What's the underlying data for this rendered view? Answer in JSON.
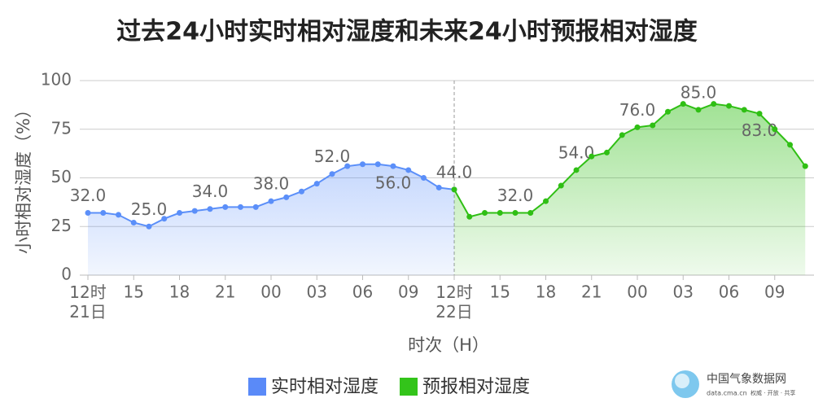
{
  "chart_data": {
    "type": "area-line",
    "title": "过去24小时实时相对湿度和未来24小时预报相对湿度",
    "y_label": "小时相对湿度（%）",
    "x_label": "时次（H）",
    "categories": [
      "12时\n21日",
      null,
      null,
      "15",
      null,
      null,
      "18",
      null,
      null,
      "21",
      null,
      null,
      "00",
      null,
      null,
      "03",
      null,
      null,
      "06",
      null,
      null,
      "09",
      null,
      null,
      "12时\n22日",
      null,
      null,
      "15",
      null,
      null,
      "18",
      null,
      null,
      "21",
      null,
      null,
      "00",
      null,
      null,
      "03",
      null,
      null,
      "06",
      null,
      null,
      "09",
      null,
      null
    ],
    "ylim": [
      0,
      100
    ],
    "yticks": [
      0,
      25,
      50,
      75,
      100
    ],
    "grid": true,
    "series": [
      {
        "name": "实时相对湿度",
        "color": "#5b8ff9",
        "legend_color": "#5a8af8",
        "values": [
          32,
          32,
          31,
          27,
          25,
          29,
          32,
          33,
          34,
          35,
          35,
          35,
          38,
          40,
          43,
          47,
          52,
          56,
          57,
          57,
          56,
          54,
          50,
          45,
          44,
          null,
          null,
          null,
          null,
          null,
          null,
          null,
          null,
          null,
          null,
          null,
          null,
          null,
          null,
          null,
          null,
          null,
          null,
          null,
          null,
          null,
          null,
          null
        ],
        "value_labels": [
          "32.0",
          null,
          null,
          null,
          "25.0",
          null,
          null,
          null,
          "34.0",
          null,
          null,
          null,
          "38.0",
          null,
          null,
          null,
          "52.0",
          null,
          null,
          null,
          "56.0",
          null,
          null,
          null,
          "44.0",
          null,
          null,
          null,
          null,
          null,
          null,
          null,
          null,
          null,
          null,
          null,
          null,
          null,
          null,
          null,
          null,
          null,
          null,
          null,
          null,
          null,
          null,
          null
        ]
      },
      {
        "name": "预报相对湿度",
        "color": "#2fbf14",
        "legend_color": "#33c41a",
        "values": [
          null,
          null,
          null,
          null,
          null,
          null,
          null,
          null,
          null,
          null,
          null,
          null,
          null,
          null,
          null,
          null,
          null,
          null,
          null,
          null,
          null,
          null,
          null,
          null,
          44,
          30,
          32,
          32,
          32,
          32,
          38,
          46,
          54,
          61,
          63,
          72,
          76,
          77,
          84,
          88,
          85,
          88,
          87,
          85,
          83,
          75,
          67,
          56
        ],
        "value_labels": [
          null,
          null,
          null,
          null,
          null,
          null,
          null,
          null,
          null,
          null,
          null,
          null,
          null,
          null,
          null,
          null,
          null,
          null,
          null,
          null,
          null,
          null,
          null,
          null,
          null,
          null,
          null,
          null,
          "32.0",
          null,
          null,
          null,
          "54.0",
          null,
          null,
          null,
          "76.0",
          null,
          null,
          null,
          "85.0",
          null,
          null,
          null,
          "83.0",
          null,
          null,
          null
        ]
      }
    ]
  },
  "watermark": {
    "name": "中国气象数据网",
    "url": "data.cma.cn",
    "slogan": "权威 · 开放 · 共享"
  }
}
